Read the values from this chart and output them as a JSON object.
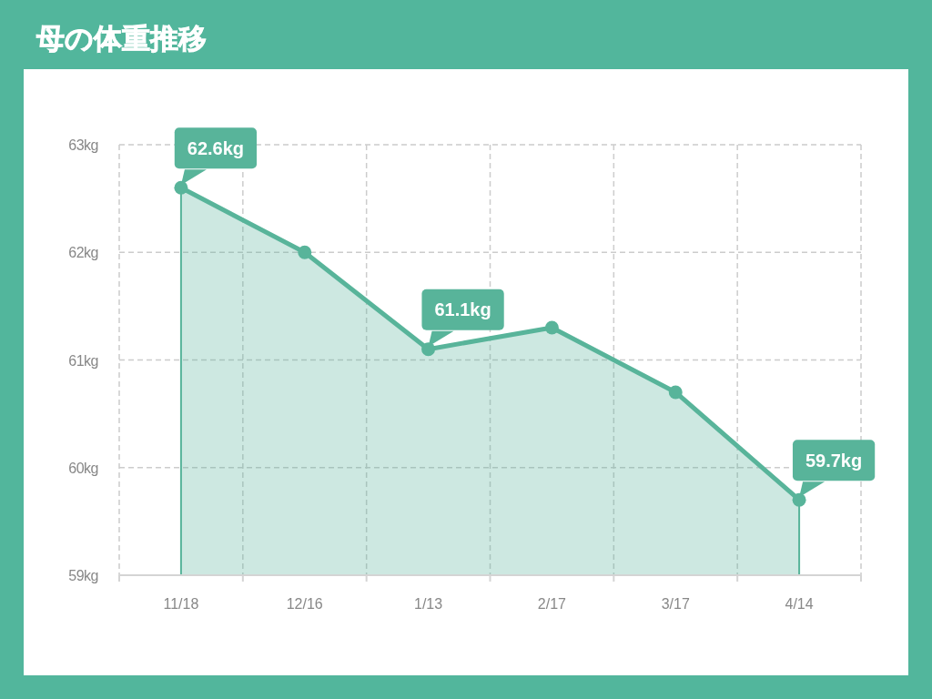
{
  "chart_data": {
    "type": "area",
    "title": "母の体重推移",
    "categories": [
      "11/18",
      "12/16",
      "1/13",
      "2/17",
      "3/17",
      "4/14"
    ],
    "series": [
      {
        "color": "#58b49a",
        "values": [
          62.6,
          62.0,
          61.1,
          61.3,
          60.7,
          59.7
        ],
        "value_labels": [
          "62.6kg",
          null,
          "61.1kg",
          null,
          null,
          "59.7kg"
        ]
      }
    ],
    "ylim": [
      59,
      63
    ],
    "yticks": [
      {
        "value": 59,
        "label": "59kg"
      },
      {
        "value": 60,
        "label": "60kg"
      },
      {
        "value": 61,
        "label": "61kg"
      },
      {
        "value": 62,
        "label": "62kg"
      },
      {
        "value": 63,
        "label": "63kg"
      }
    ],
    "grid": true,
    "marker": "circle",
    "line_style": "solid"
  }
}
